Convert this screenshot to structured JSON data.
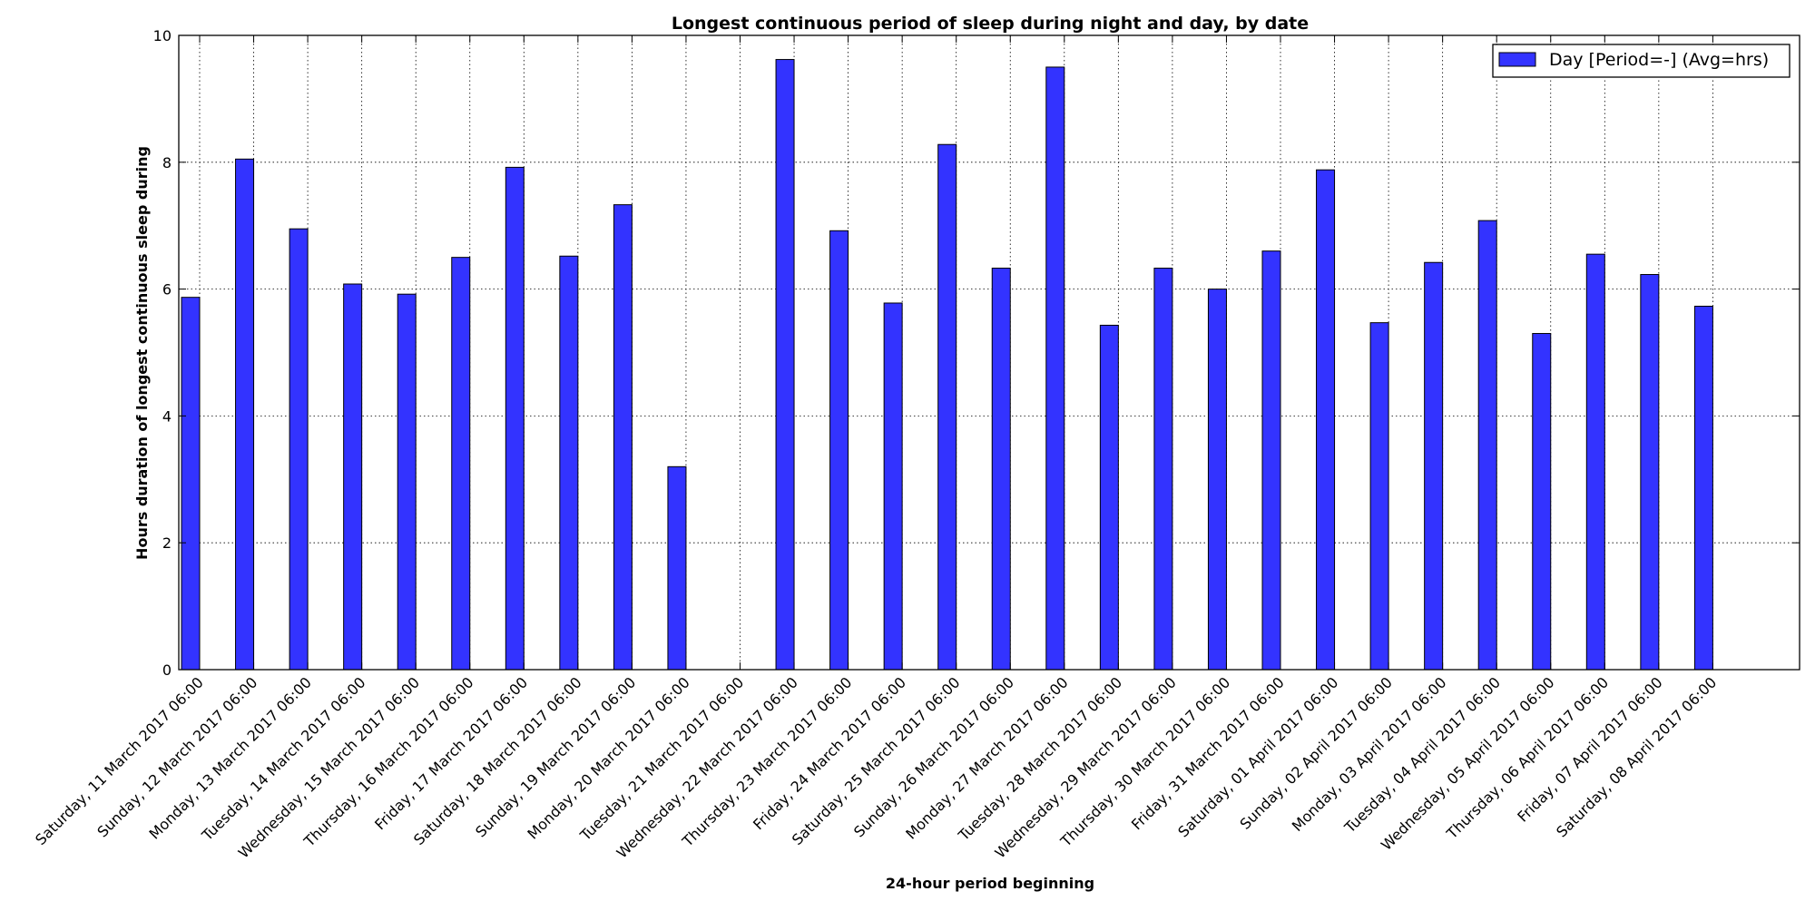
{
  "chart_data": {
    "type": "bar",
    "title": "Longest continuous period of sleep during night and day, by date",
    "xlabel": "24-hour period beginning",
    "ylabel": "Hours duration of longest continuous sleep during",
    "ylim": [
      0,
      10
    ],
    "yticks": [
      0,
      2,
      4,
      6,
      8,
      10
    ],
    "grid": true,
    "legend_position": "top-right",
    "bar_color": "#3333ff",
    "categories": [
      "Saturday, 11 March 2017 06:00",
      "Sunday, 12 March 2017 06:00",
      "Monday, 13 March 2017 06:00",
      "Tuesday, 14 March 2017 06:00",
      "Wednesday, 15 March 2017 06:00",
      "Thursday, 16 March 2017 06:00",
      "Friday, 17 March 2017 06:00",
      "Saturday, 18 March 2017 06:00",
      "Sunday, 19 March 2017 06:00",
      "Monday, 20 March 2017 06:00",
      "Tuesday, 21 March 2017 06:00",
      "Wednesday, 22 March 2017 06:00",
      "Thursday, 23 March 2017 06:00",
      "Friday, 24 March 2017 06:00",
      "Saturday, 25 March 2017 06:00",
      "Sunday, 26 March 2017 06:00",
      "Monday, 27 March 2017 06:00",
      "Tuesday, 28 March 2017 06:00",
      "Wednesday, 29 March 2017 06:00",
      "Thursday, 30 March 2017 06:00",
      "Friday, 31 March 2017 06:00",
      "Saturday, 01 April 2017 06:00",
      "Sunday, 02 April 2017 06:00",
      "Monday, 03 April 2017 06:00",
      "Tuesday, 04 April 2017 06:00",
      "Wednesday, 05 April 2017 06:00",
      "Thursday, 06 April 2017 06:00",
      "Friday, 07 April 2017 06:00",
      "Saturday, 08 April 2017 06:00"
    ],
    "series": [
      {
        "name": "Day [Period=-] (Avg=hrs)",
        "values": [
          5.87,
          8.05,
          6.95,
          6.08,
          5.92,
          6.5,
          7.92,
          6.52,
          7.33,
          3.2,
          0,
          9.62,
          6.92,
          5.78,
          8.28,
          6.33,
          9.5,
          5.43,
          6.33,
          6.0,
          6.6,
          7.88,
          5.47,
          6.42,
          7.08,
          5.3,
          6.55,
          6.23,
          5.73
        ]
      }
    ]
  }
}
